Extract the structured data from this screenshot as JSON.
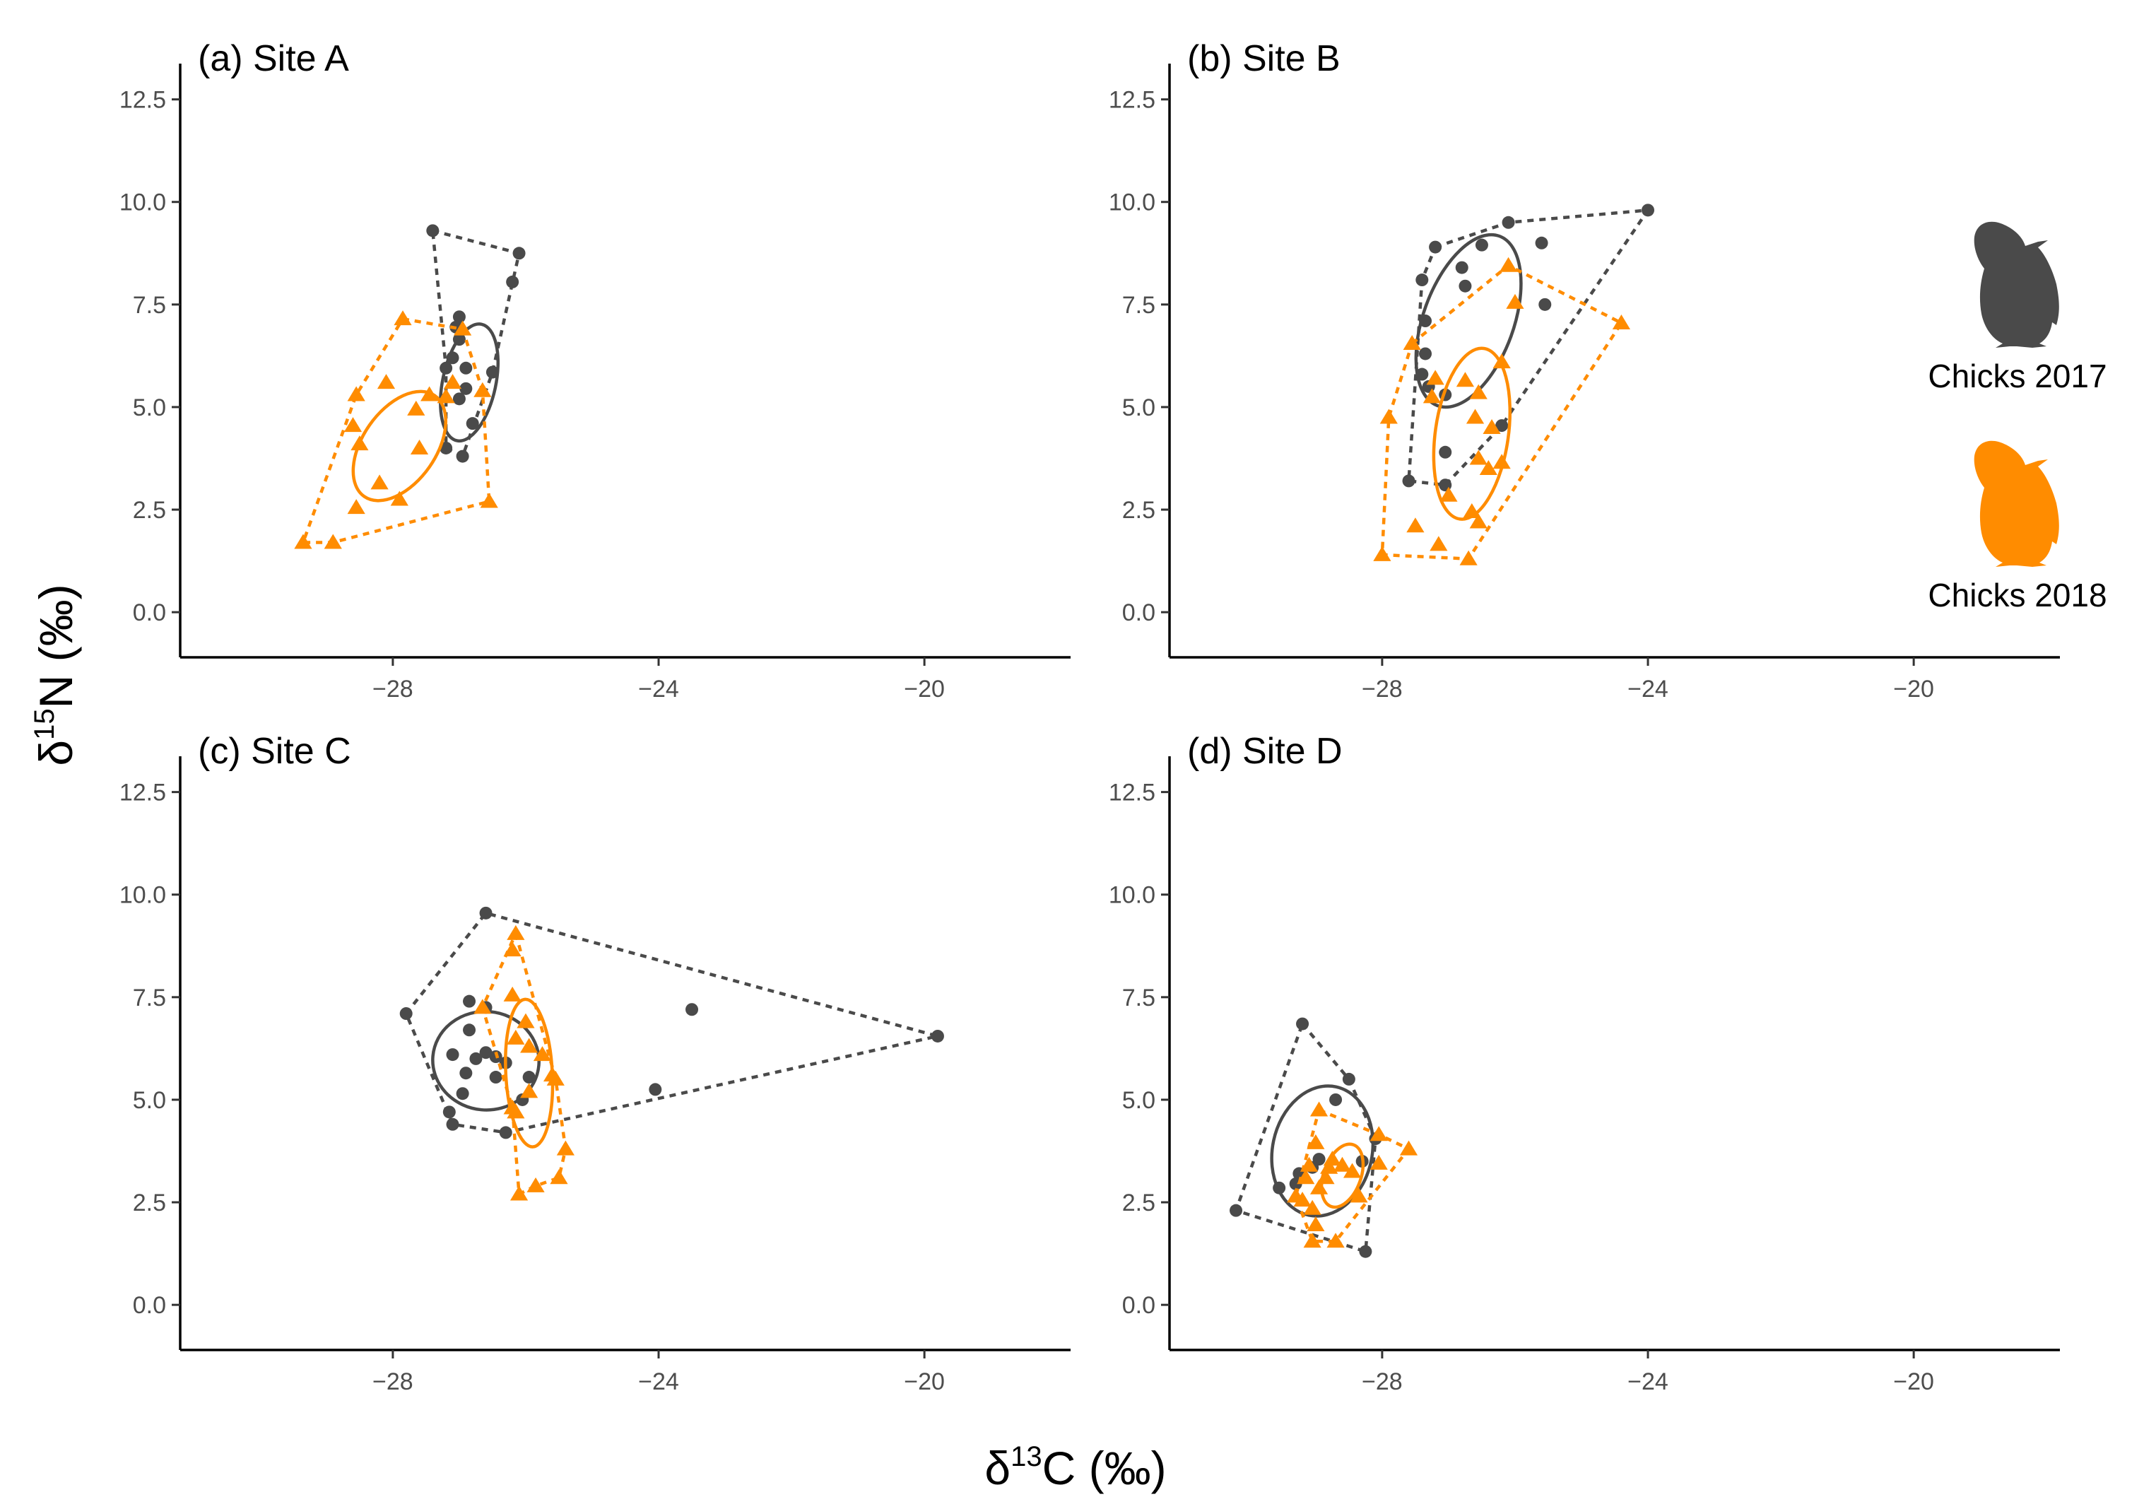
{
  "figure": {
    "ylabel_main": "δ",
    "ylabel_sup": "15",
    "ylabel_tail": "N (‰)",
    "xlabel_main": "δ",
    "xlabel_sup": "13",
    "xlabel_tail": "C (‰)"
  },
  "legend": {
    "items": [
      {
        "label": "Chicks 2017",
        "color": "#4a4a4a",
        "icon": "penguin-chick-icon"
      },
      {
        "label": "Chicks 2018",
        "color": "#ff8c00",
        "icon": "penguin-chick-icon"
      }
    ]
  },
  "chart_data": [
    {
      "type": "scatter",
      "title": "(a) Site A",
      "xlim": [
        -31.2,
        -17.8
      ],
      "ylim": [
        -1.1,
        13.2
      ],
      "xticks": [
        -28,
        -24,
        -20
      ],
      "xtick_labels": [
        "−28",
        "−24",
        "−20"
      ],
      "yticks": [
        0,
        2.5,
        5,
        7.5,
        10,
        12.5
      ],
      "ytick_labels": [
        "0.0",
        "2.5",
        "5.0",
        "7.5",
        "10.0",
        "12.5"
      ],
      "series": [
        {
          "name": "Chicks 2017",
          "color": "#4a4a4a",
          "marker": "circle",
          "points": [
            [
              -27.4,
              9.3
            ],
            [
              -26.1,
              8.75
            ],
            [
              -26.2,
              8.05
            ],
            [
              -27.0,
              7.2
            ],
            [
              -27.05,
              6.95
            ],
            [
              -27.0,
              6.65
            ],
            [
              -27.1,
              6.2
            ],
            [
              -27.2,
              5.95
            ],
            [
              -26.9,
              5.95
            ],
            [
              -26.5,
              5.85
            ],
            [
              -26.9,
              5.45
            ],
            [
              -27.0,
              5.2
            ],
            [
              -26.8,
              4.6
            ],
            [
              -27.2,
              4.0
            ],
            [
              -26.95,
              3.8
            ]
          ],
          "hull": [
            [
              -27.4,
              9.3
            ],
            [
              -26.1,
              8.75
            ],
            [
              -26.5,
              5.85
            ],
            [
              -26.95,
              3.8
            ],
            [
              -27.2,
              4.0
            ],
            [
              -27.2,
              5.95
            ]
          ],
          "ellipse": {
            "cx": -26.85,
            "cy": 5.6,
            "rx": 0.4,
            "ry": 1.45,
            "angle": 12
          }
        },
        {
          "name": "Chicks 2018",
          "color": "#ff8c00",
          "marker": "triangle",
          "points": [
            [
              -27.85,
              7.15
            ],
            [
              -26.95,
              6.9
            ],
            [
              -28.1,
              5.6
            ],
            [
              -28.55,
              5.3
            ],
            [
              -27.45,
              5.3
            ],
            [
              -27.2,
              5.25
            ],
            [
              -27.1,
              5.6
            ],
            [
              -26.65,
              5.4
            ],
            [
              -28.6,
              4.55
            ],
            [
              -27.65,
              4.95
            ],
            [
              -27.6,
              4.0
            ],
            [
              -28.5,
              4.1
            ],
            [
              -28.2,
              3.15
            ],
            [
              -27.9,
              2.75
            ],
            [
              -28.55,
              2.55
            ],
            [
              -26.55,
              2.7
            ],
            [
              -29.35,
              1.7
            ],
            [
              -28.9,
              1.7
            ]
          ],
          "hull": [
            [
              -27.85,
              7.15
            ],
            [
              -26.95,
              6.9
            ],
            [
              -26.65,
              5.4
            ],
            [
              -26.55,
              2.7
            ],
            [
              -28.9,
              1.7
            ],
            [
              -29.35,
              1.7
            ],
            [
              -28.55,
              5.3
            ]
          ],
          "ellipse": {
            "cx": -27.9,
            "cy": 4.05,
            "rx": 0.55,
            "ry": 1.5,
            "angle": 35
          }
        }
      ]
    },
    {
      "type": "scatter",
      "title": "(b) Site B",
      "xlim": [
        -31.2,
        -17.8
      ],
      "ylim": [
        -1.1,
        13.2
      ],
      "xticks": [
        -28,
        -24,
        -20
      ],
      "xtick_labels": [
        "−28",
        "−24",
        "−20"
      ],
      "yticks": [
        0,
        2.5,
        5,
        7.5,
        10,
        12.5
      ],
      "ytick_labels": [
        "0.0",
        "2.5",
        "5.0",
        "7.5",
        "10.0",
        "12.5"
      ],
      "series": [
        {
          "name": "Chicks 2017",
          "color": "#4a4a4a",
          "marker": "circle",
          "points": [
            [
              -24.0,
              9.8
            ],
            [
              -26.1,
              9.5
            ],
            [
              -27.2,
              8.9
            ],
            [
              -26.5,
              8.95
            ],
            [
              -25.6,
              9.0
            ],
            [
              -26.8,
              8.4
            ],
            [
              -27.4,
              8.1
            ],
            [
              -26.75,
              7.95
            ],
            [
              -25.55,
              7.5
            ],
            [
              -27.35,
              7.1
            ],
            [
              -27.35,
              6.3
            ],
            [
              -27.4,
              5.8
            ],
            [
              -27.3,
              5.5
            ],
            [
              -27.05,
              5.3
            ],
            [
              -26.2,
              4.55
            ],
            [
              -27.05,
              3.9
            ],
            [
              -27.6,
              3.2
            ],
            [
              -27.05,
              3.1
            ]
          ],
          "hull": [
            [
              -27.2,
              8.9
            ],
            [
              -26.1,
              9.5
            ],
            [
              -24.0,
              9.8
            ],
            [
              -26.2,
              4.55
            ],
            [
              -27.05,
              3.1
            ],
            [
              -27.6,
              3.2
            ],
            [
              -27.4,
              8.1
            ]
          ],
          "ellipse": {
            "cx": -26.7,
            "cy": 7.1,
            "rx": 0.68,
            "ry": 2.2,
            "angle": 20
          }
        },
        {
          "name": "Chicks 2018",
          "color": "#ff8c00",
          "marker": "triangle",
          "points": [
            [
              -26.1,
              8.45
            ],
            [
              -26.0,
              7.55
            ],
            [
              -24.4,
              7.05
            ],
            [
              -27.55,
              6.55
            ],
            [
              -26.2,
              6.1
            ],
            [
              -27.2,
              5.7
            ],
            [
              -26.75,
              5.65
            ],
            [
              -27.25,
              5.25
            ],
            [
              -26.55,
              5.35
            ],
            [
              -27.9,
              4.75
            ],
            [
              -26.6,
              4.75
            ],
            [
              -26.35,
              4.5
            ],
            [
              -26.55,
              3.75
            ],
            [
              -26.4,
              3.5
            ],
            [
              -26.2,
              3.65
            ],
            [
              -27.0,
              2.85
            ],
            [
              -26.65,
              2.45
            ],
            [
              -27.5,
              2.1
            ],
            [
              -26.55,
              2.2
            ],
            [
              -27.15,
              1.65
            ],
            [
              -28.0,
              1.4
            ],
            [
              -26.7,
              1.3
            ]
          ],
          "hull": [
            [
              -27.55,
              6.55
            ],
            [
              -26.1,
              8.45
            ],
            [
              -24.4,
              7.05
            ],
            [
              -26.7,
              1.3
            ],
            [
              -28.0,
              1.4
            ],
            [
              -27.9,
              4.75
            ]
          ],
          "ellipse": {
            "cx": -26.65,
            "cy": 4.35,
            "rx": 0.55,
            "ry": 2.1,
            "angle": 8
          }
        }
      ]
    },
    {
      "type": "scatter",
      "title": "(c) Site C",
      "xlim": [
        -31.2,
        -17.8
      ],
      "ylim": [
        -1.1,
        13.2
      ],
      "xticks": [
        -28,
        -24,
        -20
      ],
      "xtick_labels": [
        "−28",
        "−24",
        "−20"
      ],
      "yticks": [
        0,
        2.5,
        5,
        7.5,
        10,
        12.5
      ],
      "ytick_labels": [
        "0.0",
        "2.5",
        "5.0",
        "7.5",
        "10.0",
        "12.5"
      ],
      "series": [
        {
          "name": "Chicks 2017",
          "color": "#4a4a4a",
          "marker": "circle",
          "points": [
            [
              -26.6,
              9.55
            ],
            [
              -27.8,
              7.1
            ],
            [
              -23.5,
              7.2
            ],
            [
              -19.8,
              6.55
            ],
            [
              -26.85,
              7.4
            ],
            [
              -26.6,
              7.25
            ],
            [
              -26.85,
              6.7
            ],
            [
              -27.1,
              6.1
            ],
            [
              -26.75,
              6.0
            ],
            [
              -26.6,
              6.15
            ],
            [
              -26.45,
              6.05
            ],
            [
              -26.3,
              5.9
            ],
            [
              -26.9,
              5.65
            ],
            [
              -26.45,
              5.55
            ],
            [
              -25.95,
              5.55
            ],
            [
              -26.95,
              5.15
            ],
            [
              -27.15,
              4.7
            ],
            [
              -27.1,
              4.4
            ],
            [
              -26.3,
              4.2
            ],
            [
              -26.05,
              5.0
            ],
            [
              -24.05,
              5.25
            ]
          ],
          "hull": [
            [
              -27.8,
              7.1
            ],
            [
              -26.6,
              9.55
            ],
            [
              -19.8,
              6.55
            ],
            [
              -26.3,
              4.2
            ],
            [
              -27.1,
              4.4
            ]
          ],
          "ellipse": {
            "cx": -26.6,
            "cy": 5.95,
            "rx": 0.8,
            "ry": 1.2,
            "angle": 5
          }
        },
        {
          "name": "Chicks 2018",
          "color": "#ff8c00",
          "marker": "triangle",
          "points": [
            [
              -26.15,
              9.05
            ],
            [
              -26.2,
              8.65
            ],
            [
              -26.2,
              7.55
            ],
            [
              -26.65,
              7.25
            ],
            [
              -26.0,
              6.9
            ],
            [
              -26.15,
              6.5
            ],
            [
              -25.95,
              6.3
            ],
            [
              -25.75,
              6.1
            ],
            [
              -25.55,
              5.5
            ],
            [
              -25.6,
              5.6
            ],
            [
              -25.95,
              5.2
            ],
            [
              -26.2,
              4.8
            ],
            [
              -26.15,
              4.7
            ],
            [
              -25.4,
              3.8
            ],
            [
              -25.85,
              2.9
            ],
            [
              -25.5,
              3.1
            ],
            [
              -26.1,
              2.7
            ]
          ],
          "hull": [
            [
              -26.15,
              9.05
            ],
            [
              -25.55,
              5.5
            ],
            [
              -25.4,
              3.8
            ],
            [
              -25.5,
              3.1
            ],
            [
              -25.85,
              2.9
            ],
            [
              -26.1,
              2.7
            ],
            [
              -26.2,
              4.8
            ],
            [
              -26.65,
              7.25
            ]
          ],
          "ellipse": {
            "cx": -25.95,
            "cy": 5.65,
            "rx": 0.35,
            "ry": 1.8,
            "angle": -3
          }
        }
      ]
    },
    {
      "type": "scatter",
      "title": "(d) Site D",
      "xlim": [
        -31.2,
        -17.8
      ],
      "ylim": [
        -1.1,
        13.2
      ],
      "xticks": [
        -28,
        -24,
        -20
      ],
      "xtick_labels": [
        "−28",
        "−24",
        "−20"
      ],
      "yticks": [
        0,
        2.5,
        5,
        7.5,
        10,
        12.5
      ],
      "ytick_labels": [
        "0.0",
        "2.5",
        "5.0",
        "7.5",
        "10.0",
        "12.5"
      ],
      "series": [
        {
          "name": "Chicks 2017",
          "color": "#4a4a4a",
          "marker": "circle",
          "points": [
            [
              -29.2,
              6.85
            ],
            [
              -28.5,
              5.5
            ],
            [
              -28.7,
              5.0
            ],
            [
              -28.1,
              4.05
            ],
            [
              -28.95,
              3.55
            ],
            [
              -29.25,
              3.2
            ],
            [
              -29.05,
              3.35
            ],
            [
              -29.55,
              2.85
            ],
            [
              -29.3,
              2.95
            ],
            [
              -28.3,
              3.5
            ],
            [
              -30.2,
              2.3
            ],
            [
              -28.25,
              1.3
            ]
          ],
          "hull": [
            [
              -29.2,
              6.85
            ],
            [
              -28.5,
              5.5
            ],
            [
              -28.1,
              4.05
            ],
            [
              -28.25,
              1.3
            ],
            [
              -30.2,
              2.3
            ]
          ],
          "ellipse": {
            "cx": -28.9,
            "cy": 3.75,
            "rx": 0.75,
            "ry": 1.6,
            "angle": 12
          }
        },
        {
          "name": "Chicks 2018",
          "color": "#ff8c00",
          "marker": "triangle",
          "points": [
            [
              -28.95,
              4.75
            ],
            [
              -28.05,
              4.15
            ],
            [
              -27.6,
              3.8
            ],
            [
              -29.0,
              3.95
            ],
            [
              -28.75,
              3.55
            ],
            [
              -29.1,
              3.4
            ],
            [
              -28.8,
              3.35
            ],
            [
              -28.6,
              3.4
            ],
            [
              -28.45,
              3.25
            ],
            [
              -28.85,
              3.1
            ],
            [
              -29.15,
              3.1
            ],
            [
              -28.95,
              2.85
            ],
            [
              -29.3,
              2.65
            ],
            [
              -28.35,
              2.65
            ],
            [
              -29.2,
              2.55
            ],
            [
              -29.05,
              2.35
            ],
            [
              -28.05,
              3.45
            ],
            [
              -29.0,
              1.95
            ],
            [
              -29.05,
              1.55
            ],
            [
              -28.7,
              1.55
            ]
          ],
          "hull": [
            [
              -28.95,
              4.75
            ],
            [
              -28.05,
              4.15
            ],
            [
              -27.6,
              3.8
            ],
            [
              -28.7,
              1.55
            ],
            [
              -29.05,
              1.55
            ],
            [
              -29.3,
              2.65
            ]
          ],
          "ellipse": {
            "cx": -28.6,
            "cy": 3.15,
            "rx": 0.28,
            "ry": 0.8,
            "angle": 20
          }
        }
      ]
    }
  ]
}
